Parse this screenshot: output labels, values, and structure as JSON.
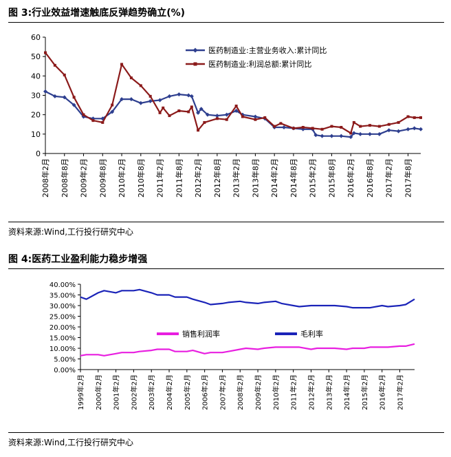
{
  "figure1": {
    "title": "图 3:行业效益增速触底反弹趋势确立(%)",
    "source": "资料来源:Wind,工行投行研究中心"
  },
  "figure2": {
    "title": "图 4:医药工业盈利能力稳步增强",
    "source": "资料来源:Wind,工行投行研究中心"
  },
  "chart_data": [
    {
      "type": "line",
      "title": "",
      "xlabel": "",
      "ylabel": "",
      "ylim": [
        0,
        60
      ],
      "yticks": [
        "0",
        "10",
        "20",
        "30",
        "40",
        "50",
        "60"
      ],
      "x_ticks": [
        "2008年2月",
        "2008年8月",
        "2009年2月",
        "2009年8月",
        "2010年2月",
        "2010年8月",
        "2011年2月",
        "2011年8月",
        "2012年2月",
        "2012年8月",
        "2013年2月",
        "2013年8月",
        "2014年2月",
        "2014年8月",
        "2015年2月",
        "2015年8月",
        "2016年2月",
        "2016年8月",
        "2017年2月",
        "2017年8月"
      ],
      "x_start": "2008-02",
      "x_end": "2017-12",
      "grid": false,
      "legend_position": "top-right",
      "series": [
        {
          "name": "医药制造业:主营业务收入:累计同比",
          "color": "#2e3f8f",
          "marker": "diamond",
          "points": [
            [
              "2008-02",
              32
            ],
            [
              "2008-05",
              29.5
            ],
            [
              "2008-08",
              29
            ],
            [
              "2008-11",
              25
            ],
            [
              "2009-02",
              19
            ],
            [
              "2009-05",
              18
            ],
            [
              "2009-08",
              18
            ],
            [
              "2009-11",
              21.5
            ],
            [
              "2010-02",
              28
            ],
            [
              "2010-05",
              28
            ],
            [
              "2010-08",
              26
            ],
            [
              "2010-11",
              27
            ],
            [
              "2011-02",
              27.5
            ],
            [
              "2011-05",
              29.5
            ],
            [
              "2011-08",
              30.5
            ],
            [
              "2011-11",
              30
            ],
            [
              "2011-12",
              29.5
            ],
            [
              "2012-02",
              21
            ],
            [
              "2012-03",
              23
            ],
            [
              "2012-05",
              20
            ],
            [
              "2012-08",
              19.5
            ],
            [
              "2012-11",
              20
            ],
            [
              "2013-02",
              22
            ],
            [
              "2013-04",
              20
            ],
            [
              "2013-08",
              19
            ],
            [
              "2013-11",
              18
            ],
            [
              "2014-02",
              13.5
            ],
            [
              "2014-05",
              13.5
            ],
            [
              "2014-08",
              13
            ],
            [
              "2014-11",
              12.5
            ],
            [
              "2015-02",
              12.5
            ],
            [
              "2015-03",
              9.5
            ],
            [
              "2015-05",
              9
            ],
            [
              "2015-08",
              9
            ],
            [
              "2015-11",
              9
            ],
            [
              "2016-02",
              8.5
            ],
            [
              "2016-03",
              10.5
            ],
            [
              "2016-05",
              10
            ],
            [
              "2016-08",
              10
            ],
            [
              "2016-11",
              10
            ],
            [
              "2017-02",
              12
            ],
            [
              "2017-05",
              11.5
            ],
            [
              "2017-08",
              12.5
            ],
            [
              "2017-10",
              13
            ],
            [
              "2017-12",
              12.5
            ]
          ]
        },
        {
          "name": "医药制造业:利润总额:累计同比",
          "color": "#8b1a1a",
          "marker": "square",
          "points": [
            [
              "2008-02",
              52
            ],
            [
              "2008-05",
              45.5
            ],
            [
              "2008-08",
              40.5
            ],
            [
              "2008-11",
              29
            ],
            [
              "2009-02",
              20
            ],
            [
              "2009-05",
              17
            ],
            [
              "2009-08",
              16
            ],
            [
              "2009-11",
              25
            ],
            [
              "2010-02",
              46
            ],
            [
              "2010-05",
              39
            ],
            [
              "2010-08",
              35
            ],
            [
              "2010-11",
              29.5
            ],
            [
              "2011-02",
              21
            ],
            [
              "2011-03",
              23.5
            ],
            [
              "2011-05",
              19.5
            ],
            [
              "2011-08",
              22
            ],
            [
              "2011-11",
              21.5
            ],
            [
              "2011-12",
              24
            ],
            [
              "2012-02",
              12
            ],
            [
              "2012-04",
              16
            ],
            [
              "2012-08",
              18
            ],
            [
              "2012-11",
              17.5
            ],
            [
              "2013-02",
              24.5
            ],
            [
              "2013-04",
              19
            ],
            [
              "2013-08",
              17.5
            ],
            [
              "2013-11",
              18.5
            ],
            [
              "2014-02",
              14
            ],
            [
              "2014-04",
              15.5
            ],
            [
              "2014-08",
              13
            ],
            [
              "2014-11",
              13.5
            ],
            [
              "2015-02",
              13
            ],
            [
              "2015-05",
              12.5
            ],
            [
              "2015-08",
              14
            ],
            [
              "2015-11",
              13.5
            ],
            [
              "2016-02",
              10.5
            ],
            [
              "2016-03",
              16
            ],
            [
              "2016-05",
              14
            ],
            [
              "2016-08",
              14.5
            ],
            [
              "2016-11",
              14
            ],
            [
              "2017-02",
              15
            ],
            [
              "2017-05",
              16
            ],
            [
              "2017-08",
              19
            ],
            [
              "2017-10",
              18.5
            ],
            [
              "2017-12",
              18.5
            ]
          ]
        }
      ]
    },
    {
      "type": "line",
      "title": "",
      "xlabel": "",
      "ylabel": "",
      "ylim": [
        0,
        40
      ],
      "yticks": [
        "0.00%",
        "5.00%",
        "10.00%",
        "15.00%",
        "20.00%",
        "25.00%",
        "30.00%",
        "35.00%",
        "40.00%"
      ],
      "x_ticks": [
        "1999年2月",
        "2000年2月",
        "2001年2月",
        "2002年2月",
        "2003年2月",
        "2004年2月",
        "2005年2月",
        "2006年2月",
        "2007年2月",
        "2008年2月",
        "2009年2月",
        "2010年2月",
        "2011年2月",
        "2012年2月",
        "2013年2月",
        "2014年2月",
        "2015年2月",
        "2016年2月",
        "2017年2月"
      ],
      "x_start": "1999-02",
      "x_end": "2017-12",
      "grid": false,
      "legend_position": "center",
      "series": [
        {
          "name": "销售利润率",
          "color": "#e81ee0",
          "points": [
            [
              "1999-02",
              6.5
            ],
            [
              "1999-06",
              7
            ],
            [
              "2000-02",
              7
            ],
            [
              "2000-06",
              6.5
            ],
            [
              "2001-02",
              7.5
            ],
            [
              "2001-06",
              8
            ],
            [
              "2002-02",
              8
            ],
            [
              "2002-06",
              8.5
            ],
            [
              "2003-02",
              9
            ],
            [
              "2003-06",
              9.5
            ],
            [
              "2004-02",
              9.5
            ],
            [
              "2004-06",
              8.5
            ],
            [
              "2005-02",
              8.5
            ],
            [
              "2005-06",
              9
            ],
            [
              "2006-02",
              7.5
            ],
            [
              "2006-06",
              8
            ],
            [
              "2007-02",
              8
            ],
            [
              "2007-06",
              8.5
            ],
            [
              "2008-02",
              9.5
            ],
            [
              "2008-06",
              10
            ],
            [
              "2009-02",
              9.5
            ],
            [
              "2009-06",
              10
            ],
            [
              "2010-02",
              10.5
            ],
            [
              "2010-06",
              10.5
            ],
            [
              "2011-02",
              10.5
            ],
            [
              "2011-06",
              10.5
            ],
            [
              "2012-02",
              9.5
            ],
            [
              "2012-06",
              10
            ],
            [
              "2013-02",
              10
            ],
            [
              "2013-06",
              10
            ],
            [
              "2014-02",
              9.5
            ],
            [
              "2014-06",
              10
            ],
            [
              "2015-02",
              10
            ],
            [
              "2015-06",
              10.5
            ],
            [
              "2016-02",
              10.5
            ],
            [
              "2016-06",
              10.5
            ],
            [
              "2017-02",
              11
            ],
            [
              "2017-06",
              11
            ],
            [
              "2017-12",
              12
            ]
          ]
        },
        {
          "name": "毛利率",
          "color": "#1a23b8",
          "points": [
            [
              "1999-02",
              34
            ],
            [
              "1999-06",
              33
            ],
            [
              "2000-02",
              36
            ],
            [
              "2000-06",
              37
            ],
            [
              "2001-02",
              36
            ],
            [
              "2001-06",
              37
            ],
            [
              "2002-02",
              37
            ],
            [
              "2002-06",
              37.5
            ],
            [
              "2003-02",
              36
            ],
            [
              "2003-06",
              35
            ],
            [
              "2004-02",
              35
            ],
            [
              "2004-06",
              34
            ],
            [
              "2005-02",
              34
            ],
            [
              "2005-06",
              33
            ],
            [
              "2006-02",
              31.5
            ],
            [
              "2006-06",
              30.5
            ],
            [
              "2007-02",
              31
            ],
            [
              "2007-06",
              31.5
            ],
            [
              "2008-02",
              32
            ],
            [
              "2008-06",
              31.5
            ],
            [
              "2009-02",
              31
            ],
            [
              "2009-06",
              31.5
            ],
            [
              "2010-02",
              32
            ],
            [
              "2010-06",
              31
            ],
            [
              "2011-02",
              30
            ],
            [
              "2011-06",
              29.5
            ],
            [
              "2012-02",
              30
            ],
            [
              "2012-06",
              30
            ],
            [
              "2013-02",
              30
            ],
            [
              "2013-06",
              30
            ],
            [
              "2014-02",
              29.5
            ],
            [
              "2014-06",
              29
            ],
            [
              "2015-02",
              29
            ],
            [
              "2015-06",
              29
            ],
            [
              "2016-02",
              30
            ],
            [
              "2016-06",
              29.5
            ],
            [
              "2017-02",
              30
            ],
            [
              "2017-06",
              30.5
            ],
            [
              "2017-12",
              33
            ]
          ]
        }
      ]
    }
  ]
}
